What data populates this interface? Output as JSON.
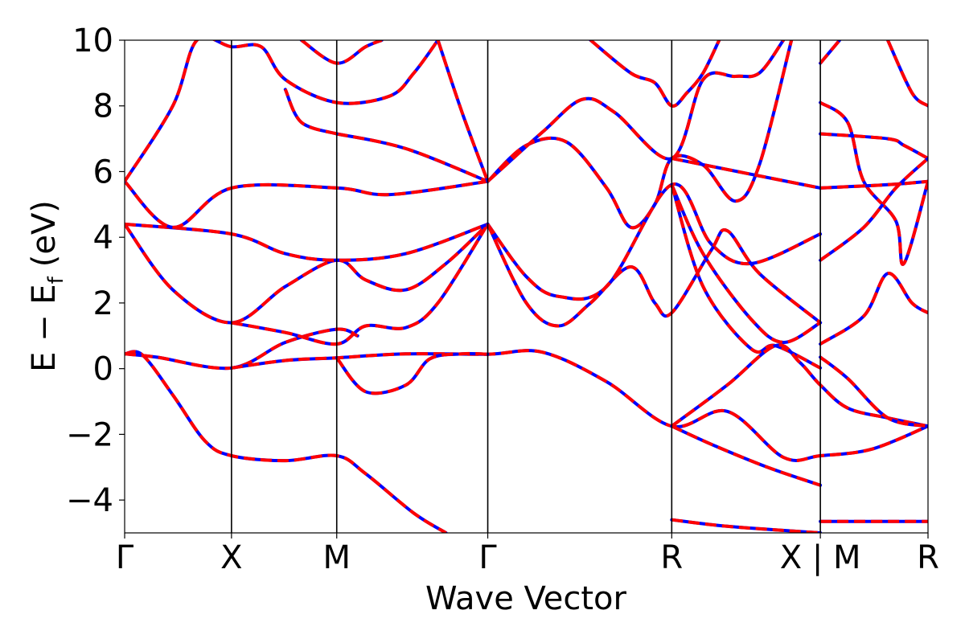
{
  "chart_data": {
    "type": "line",
    "title": "",
    "xlabel": "Wave Vector",
    "ylabel": {
      "main": "E − E",
      "sub": "f",
      "unit": "(eV)"
    },
    "ylim": [
      -5,
      10
    ],
    "yticks": [
      -4,
      -2,
      0,
      2,
      4,
      6,
      8,
      10
    ],
    "ytick_labels": [
      "−4",
      "−2",
      "0",
      "2",
      "4",
      "6",
      "8",
      "10"
    ],
    "xlim": [
      0,
      1
    ],
    "kpoints": [
      {
        "label": "Γ",
        "x": 0.0
      },
      {
        "label": "X",
        "x": 0.133
      },
      {
        "label": "M",
        "x": 0.264
      },
      {
        "label": "Γ",
        "x": 0.452
      },
      {
        "label": "R",
        "x": 0.681
      },
      {
        "label": "X | M",
        "x": 0.866
      },
      {
        "label": "R",
        "x": 1.0
      }
    ],
    "series_styles": [
      {
        "color": "#0000ff",
        "style": "solid"
      },
      {
        "color": "#ff0000",
        "style": "dashed"
      }
    ],
    "bands": [
      [
        [
          0,
          0.45
        ],
        [
          0.022,
          0.42
        ],
        [
          0.06,
          -0.8
        ],
        [
          0.1,
          -2.2
        ],
        [
          0.133,
          -2.65
        ],
        [
          0.2,
          -2.8
        ],
        [
          0.264,
          -2.65
        ],
        [
          0.3,
          -3.2
        ],
        [
          0.36,
          -4.4
        ],
        [
          0.4,
          -5.0
        ]
      ],
      [
        [
          0,
          0.45
        ],
        [
          0.04,
          0.35
        ],
        [
          0.133,
          0.02
        ],
        [
          0.2,
          0.8
        ],
        [
          0.264,
          1.2
        ],
        [
          0.29,
          1.0
        ]
      ],
      [
        [
          0.133,
          0.02
        ],
        [
          0.2,
          0.25
        ],
        [
          0.264,
          0.33
        ],
        [
          0.35,
          0.45
        ],
        [
          0.452,
          0.44
        ],
        [
          0.52,
          0.5
        ],
        [
          0.6,
          -0.4
        ],
        [
          0.681,
          -1.75
        ],
        [
          0.75,
          -1.3
        ],
        [
          0.82,
          -2.7
        ],
        [
          0.866,
          -2.65
        ],
        [
          0.93,
          -2.45
        ],
        [
          1.0,
          -1.75
        ]
      ],
      [
        [
          0.264,
          0.33
        ],
        [
          0.3,
          -0.7
        ],
        [
          0.35,
          -0.5
        ],
        [
          0.38,
          0.3
        ],
        [
          0.42,
          0.45
        ],
        [
          0.452,
          0.44
        ]
      ],
      [
        [
          0,
          4.4
        ],
        [
          0.06,
          2.4
        ],
        [
          0.133,
          1.4
        ],
        [
          0.2,
          2.5
        ],
        [
          0.264,
          3.3
        ],
        [
          0.3,
          2.7
        ],
        [
          0.35,
          2.4
        ],
        [
          0.4,
          3.2
        ],
        [
          0.452,
          4.4
        ]
      ],
      [
        [
          0.133,
          1.4
        ],
        [
          0.2,
          1.1
        ],
        [
          0.264,
          0.75
        ],
        [
          0.3,
          1.3
        ],
        [
          0.35,
          1.25
        ],
        [
          0.39,
          2.0
        ],
        [
          0.452,
          4.4
        ]
      ],
      [
        [
          0,
          4.4
        ],
        [
          0.133,
          4.1
        ],
        [
          0.2,
          3.5
        ],
        [
          0.264,
          3.3
        ],
        [
          0.35,
          3.5
        ],
        [
          0.452,
          4.4
        ]
      ],
      [
        [
          0,
          5.7
        ],
        [
          0.06,
          4.3
        ],
        [
          0.133,
          5.5
        ],
        [
          0.264,
          5.5
        ],
        [
          0.33,
          5.3
        ],
        [
          0.452,
          5.7
        ]
      ],
      [
        [
          0,
          5.7
        ],
        [
          0.06,
          8.0
        ],
        [
          0.09,
          10
        ],
        [
          0.133,
          9.8
        ],
        [
          0.17,
          9.8
        ],
        [
          0.2,
          8.8
        ],
        [
          0.264,
          8.1
        ],
        [
          0.33,
          8.3
        ],
        [
          0.36,
          9.0
        ],
        [
          0.39,
          10
        ]
      ],
      [
        [
          0.22,
          10
        ],
        [
          0.264,
          9.3
        ],
        [
          0.3,
          9.8
        ],
        [
          0.32,
          10
        ]
      ],
      [
        [
          0.264,
          7.15
        ],
        [
          0.35,
          6.7
        ],
        [
          0.452,
          5.7
        ]
      ],
      [
        [
          0.264,
          7.15
        ],
        [
          0.22,
          7.5
        ],
        [
          0.2,
          8.5
        ]
      ],
      [
        [
          0.39,
          10
        ],
        [
          0.42,
          7.8
        ],
        [
          0.452,
          5.7
        ]
      ],
      [
        [
          0.452,
          5.7
        ],
        [
          0.5,
          6.8
        ],
        [
          0.55,
          6.9
        ],
        [
          0.6,
          5.5
        ],
        [
          0.63,
          4.3
        ],
        [
          0.66,
          5.0
        ],
        [
          0.681,
          6.4
        ],
        [
          0.72,
          6.2
        ],
        [
          0.76,
          5.1
        ],
        [
          0.79,
          6.2
        ],
        [
          0.83,
          10
        ]
      ],
      [
        [
          0.452,
          5.7
        ],
        [
          0.52,
          7.2
        ],
        [
          0.57,
          8.2
        ],
        [
          0.61,
          7.8
        ],
        [
          0.681,
          6.4
        ],
        [
          0.72,
          8.8
        ],
        [
          0.76,
          8.9
        ],
        [
          0.79,
          9.0
        ],
        [
          0.82,
          10
        ]
      ],
      [
        [
          0.58,
          10
        ],
        [
          0.63,
          9.0
        ],
        [
          0.66,
          8.7
        ],
        [
          0.681,
          8.0
        ],
        [
          0.7,
          8.4
        ],
        [
          0.72,
          9.0
        ],
        [
          0.74,
          10
        ]
      ],
      [
        [
          0.452,
          4.4
        ],
        [
          0.5,
          2.8
        ],
        [
          0.54,
          2.2
        ],
        [
          0.6,
          2.5
        ],
        [
          0.681,
          5.6
        ],
        [
          0.73,
          3.8
        ],
        [
          0.78,
          3.2
        ],
        [
          0.866,
          4.1
        ]
      ],
      [
        [
          0.452,
          4.4
        ],
        [
          0.5,
          2.0
        ],
        [
          0.54,
          1.3
        ],
        [
          0.58,
          2.0
        ],
        [
          0.63,
          3.1
        ],
        [
          0.66,
          2.0
        ],
        [
          0.681,
          1.7
        ],
        [
          0.73,
          3.6
        ],
        [
          0.75,
          4.2
        ],
        [
          0.79,
          2.9
        ],
        [
          0.866,
          1.4
        ]
      ],
      [
        [
          0.681,
          5.6
        ],
        [
          0.72,
          3.5
        ],
        [
          0.78,
          1.5
        ],
        [
          0.82,
          0.8
        ],
        [
          0.866,
          1.4
        ]
      ],
      [
        [
          0.681,
          5.6
        ],
        [
          0.72,
          2.5
        ],
        [
          0.78,
          0.6
        ],
        [
          0.81,
          0.7
        ],
        [
          0.866,
          0.02
        ]
      ],
      [
        [
          0.681,
          6.4
        ],
        [
          0.866,
          5.5
        ]
      ],
      [
        [
          0.681,
          -1.75
        ],
        [
          0.75,
          -0.5
        ],
        [
          0.81,
          0.7
        ],
        [
          0.84,
          0.2
        ],
        [
          0.866,
          -0.5
        ],
        [
          0.9,
          -1.2
        ],
        [
          0.95,
          -1.5
        ],
        [
          1.0,
          -1.75
        ]
      ],
      [
        [
          0.681,
          -1.75
        ],
        [
          0.73,
          -2.3
        ],
        [
          0.8,
          -3.0
        ],
        [
          0.866,
          -3.55
        ]
      ],
      [
        [
          0.681,
          -4.6
        ],
        [
          0.75,
          -4.8
        ],
        [
          0.866,
          -5.0
        ]
      ],
      [
        [
          0.866,
          9.3
        ],
        [
          0.89,
          10
        ]
      ],
      [
        [
          0.866,
          8.1
        ],
        [
          0.9,
          7.5
        ],
        [
          0.92,
          5.7
        ],
        [
          0.96,
          4.5
        ],
        [
          0.97,
          3.2
        ],
        [
          1.0,
          5.7
        ]
      ],
      [
        [
          0.866,
          7.15
        ],
        [
          0.95,
          7.0
        ],
        [
          0.97,
          6.8
        ],
        [
          1.0,
          6.4
        ]
      ],
      [
        [
          0.866,
          5.5
        ],
        [
          0.95,
          5.6
        ],
        [
          1.0,
          5.7
        ]
      ],
      [
        [
          0.866,
          3.3
        ],
        [
          0.92,
          4.3
        ],
        [
          0.96,
          5.5
        ],
        [
          1.0,
          6.4
        ]
      ],
      [
        [
          0.866,
          0.75
        ],
        [
          0.92,
          1.6
        ],
        [
          0.95,
          2.9
        ],
        [
          0.98,
          2.0
        ],
        [
          1.0,
          1.7
        ]
      ],
      [
        [
          0.866,
          0.35
        ],
        [
          0.9,
          -0.3
        ],
        [
          0.95,
          -1.5
        ],
        [
          1.0,
          -1.75
        ]
      ],
      [
        [
          0.866,
          -4.65
        ],
        [
          1.0,
          -4.65
        ]
      ],
      [
        [
          0.95,
          10
        ],
        [
          0.98,
          8.4
        ],
        [
          1.0,
          8.0
        ]
      ]
    ]
  }
}
